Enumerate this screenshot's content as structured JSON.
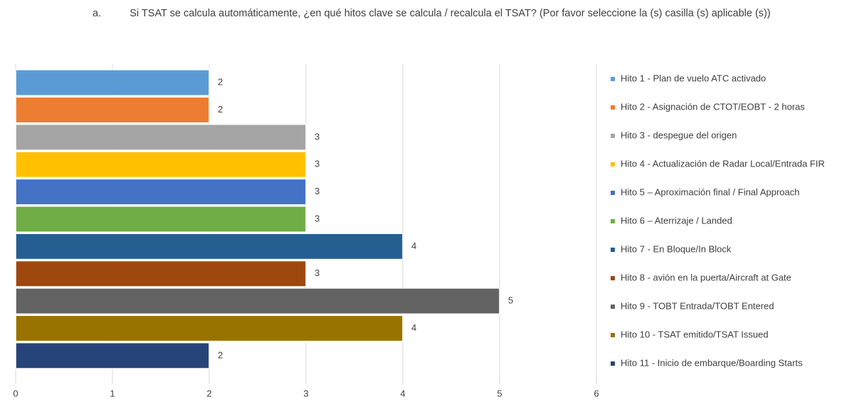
{
  "chart_data": {
    "type": "bar",
    "orientation": "horizontal",
    "title_number": "a.",
    "title": "Si TSAT se calcula automáticamente, ¿en qué hitos clave se calcula / recalcula el TSAT? (Por favor seleccione la (s) casilla (s) aplicable (s))",
    "xlim": [
      0,
      6
    ],
    "xticks": [
      0,
      1,
      2,
      3,
      4,
      5,
      6
    ],
    "grid": true,
    "legend": "right",
    "series": [
      {
        "name": "Hito 1 - Plan de vuelo ATC activado",
        "color": "#5b9bd5",
        "values": [
          2
        ]
      },
      {
        "name": "Hito 2 - Asignación de CTOT/EOBT - 2 horas",
        "color": "#ed7d31",
        "values": [
          2
        ]
      },
      {
        "name": "Hito 3 - despegue del origen",
        "color": "#a5a5a5",
        "values": [
          3
        ]
      },
      {
        "name": "Hito 4 - Actualización de Radar Local/Entrada FIR",
        "color": "#ffc000",
        "values": [
          3
        ]
      },
      {
        "name": "Hito 5 – Aproximación final / Final Approach",
        "color": "#4472c4",
        "values": [
          3
        ]
      },
      {
        "name": "Hito 6 – Aterrizaje / Landed",
        "color": "#70ad47",
        "values": [
          3
        ]
      },
      {
        "name": "Hito 7 - En Bloque/In Block",
        "color": "#255e91",
        "values": [
          4
        ]
      },
      {
        "name": "Hito 8 - avión en la puerta/Aircraft at Gate",
        "color": "#9e480e",
        "values": [
          3
        ]
      },
      {
        "name": "Hito 9 - TOBT Entrada/TOBT Entered",
        "color": "#636363",
        "values": [
          5
        ]
      },
      {
        "name": "Hito 10 - TSAT emitido/TSAT Issued",
        "color": "#997300",
        "values": [
          4
        ]
      },
      {
        "name": "Hito 11 - Inicio de embarque/Boarding Starts",
        "color": "#264478",
        "values": [
          2
        ]
      }
    ]
  }
}
